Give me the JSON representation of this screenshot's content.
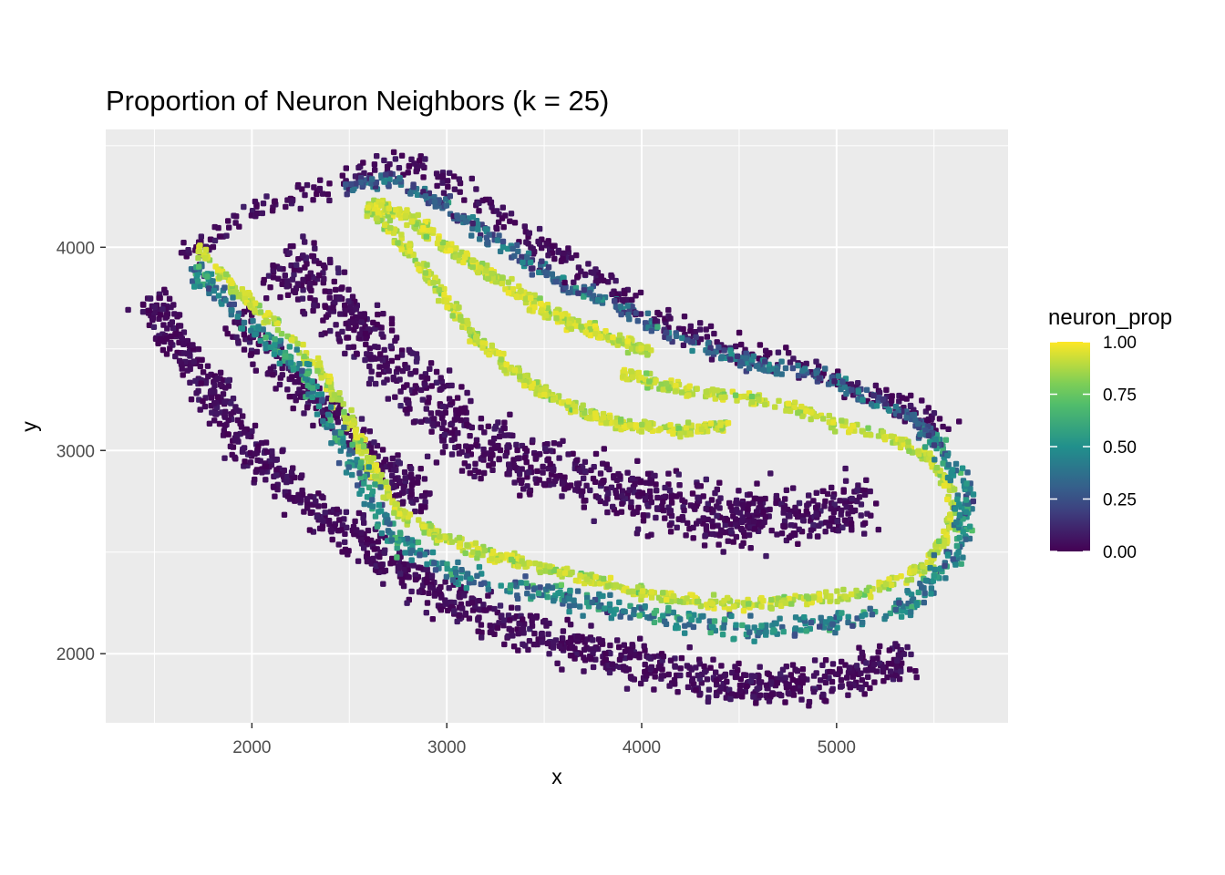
{
  "chart_data": {
    "type": "scatter",
    "title": "Proportion of Neuron Neighbors (k = 25)",
    "xlabel": "x",
    "ylabel": "y",
    "xlim": [
      1250,
      5880
    ],
    "ylim": [
      1660,
      4580
    ],
    "x_ticks": [
      2000,
      3000,
      4000,
      5000
    ],
    "x_tick_labels": [
      "2000",
      "3000",
      "4000",
      "5000"
    ],
    "y_ticks": [
      2000,
      3000,
      4000
    ],
    "y_tick_labels": [
      "2000",
      "3000",
      "4000"
    ],
    "grid": true,
    "panel_background": "#ebebeb",
    "grid_color": "#ffffff",
    "legend": {
      "title": "neuron_prop",
      "placement": "right",
      "breaks": [
        0.0,
        0.25,
        0.5,
        0.75,
        1.0
      ],
      "labels": [
        "0.00",
        "0.25",
        "0.50",
        "0.75",
        "1.00"
      ]
    },
    "colormap": "viridis",
    "viridis_stops": [
      "#440154",
      "#3b528b",
      "#21908c",
      "#5dc863",
      "#fde725"
    ],
    "regions": [
      {
        "role": "outer-dark-band-left-bottom",
        "value": 0.0,
        "path": [
          [
            1480,
            3760
          ],
          [
            1620,
            3500
          ],
          [
            1800,
            3280
          ],
          [
            2000,
            3000
          ],
          [
            2250,
            2750
          ],
          [
            2550,
            2560
          ],
          [
            2900,
            2330
          ],
          [
            3300,
            2150
          ],
          [
            3700,
            2030
          ],
          [
            4100,
            1920
          ],
          [
            4500,
            1850
          ],
          [
            4900,
            1850
          ],
          [
            5200,
            1920
          ],
          [
            5380,
            2000
          ]
        ],
        "width": 150,
        "count": 1100
      },
      {
        "role": "outer-dark-band-top",
        "value": 0.02,
        "path": [
          [
            1650,
            3950
          ],
          [
            1900,
            4130
          ],
          [
            2150,
            4220
          ],
          [
            2400,
            4300
          ],
          [
            2700,
            4420
          ],
          [
            2900,
            4400
          ],
          [
            3200,
            4200
          ],
          [
            3600,
            3950
          ],
          [
            4000,
            3700
          ],
          [
            4400,
            3530
          ],
          [
            4800,
            3420
          ],
          [
            5100,
            3300
          ],
          [
            5400,
            3200
          ],
          [
            5620,
            3080
          ]
        ],
        "width": 90,
        "count": 380
      },
      {
        "role": "central-dark-interior",
        "value": 0.0,
        "path": [
          [
            2150,
            3950
          ],
          [
            2450,
            3700
          ],
          [
            2700,
            3450
          ],
          [
            2950,
            3200
          ],
          [
            3300,
            2950
          ],
          [
            3700,
            2850
          ],
          [
            4100,
            2750
          ],
          [
            4500,
            2650
          ],
          [
            4900,
            2700
          ],
          [
            5200,
            2750
          ]
        ],
        "width": 230,
        "count": 1000
      },
      {
        "role": "left-interior-dark",
        "value": 0.0,
        "path": [
          [
            1900,
            3650
          ],
          [
            2100,
            3450
          ],
          [
            2300,
            3250
          ],
          [
            2500,
            3100
          ],
          [
            2700,
            2900
          ],
          [
            2900,
            2750
          ]
        ],
        "width": 130,
        "count": 260
      },
      {
        "role": "bright-band-outer-loop",
        "value": 0.97,
        "path": [
          [
            1720,
            4000
          ],
          [
            1900,
            3800
          ],
          [
            2150,
            3600
          ],
          [
            2350,
            3400
          ],
          [
            2500,
            3150
          ],
          [
            2620,
            2900
          ],
          [
            2750,
            2700
          ],
          [
            2950,
            2580
          ],
          [
            3250,
            2480
          ],
          [
            3600,
            2400
          ],
          [
            4000,
            2300
          ],
          [
            4400,
            2240
          ],
          [
            4800,
            2260
          ],
          [
            5150,
            2300
          ],
          [
            5450,
            2420
          ],
          [
            5580,
            2600
          ],
          [
            5600,
            2780
          ],
          [
            5500,
            2950
          ],
          [
            5300,
            3050
          ],
          [
            5050,
            3120
          ],
          [
            4800,
            3200
          ],
          [
            4500,
            3270
          ],
          [
            4200,
            3300
          ],
          [
            3900,
            3380
          ]
        ],
        "width": 42,
        "count": 900
      },
      {
        "role": "bright-band-inner-loop",
        "value": 0.98,
        "path": [
          [
            2600,
            4220
          ],
          [
            2800,
            4150
          ],
          [
            3000,
            4000
          ],
          [
            3200,
            3880
          ],
          [
            3450,
            3720
          ],
          [
            3700,
            3600
          ],
          [
            3950,
            3520
          ],
          [
            4050,
            3490
          ]
        ],
        "width": 45,
        "count": 380
      },
      {
        "role": "bright-band-inner-return",
        "value": 0.97,
        "path": [
          [
            2600,
            4200
          ],
          [
            2780,
            4020
          ],
          [
            2950,
            3800
          ],
          [
            3150,
            3550
          ],
          [
            3400,
            3350
          ],
          [
            3650,
            3200
          ],
          [
            3950,
            3120
          ],
          [
            4250,
            3100
          ],
          [
            4450,
            3120
          ]
        ],
        "width": 42,
        "count": 380
      },
      {
        "role": "transition-edge-outer",
        "value": 0.45,
        "path": [
          [
            1700,
            3900
          ],
          [
            1950,
            3650
          ],
          [
            2250,
            3420
          ],
          [
            2450,
            3050
          ],
          [
            2700,
            2600
          ],
          [
            3000,
            2400
          ],
          [
            3500,
            2300
          ],
          [
            4000,
            2200
          ],
          [
            4500,
            2120
          ],
          [
            5000,
            2150
          ],
          [
            5400,
            2250
          ],
          [
            5650,
            2550
          ],
          [
            5650,
            2850
          ],
          [
            5450,
            3100
          ]
        ],
        "width": 80,
        "count": 700
      },
      {
        "role": "transition-edge-inner",
        "value": 0.3,
        "path": [
          [
            2450,
            4280
          ],
          [
            2700,
            4350
          ],
          [
            3000,
            4200
          ],
          [
            3300,
            4000
          ],
          [
            3600,
            3820
          ],
          [
            3900,
            3700
          ],
          [
            4200,
            3550
          ],
          [
            4600,
            3420
          ],
          [
            5000,
            3350
          ],
          [
            5400,
            3150
          ],
          [
            5550,
            3000
          ]
        ],
        "width": 55,
        "count": 420
      }
    ]
  }
}
